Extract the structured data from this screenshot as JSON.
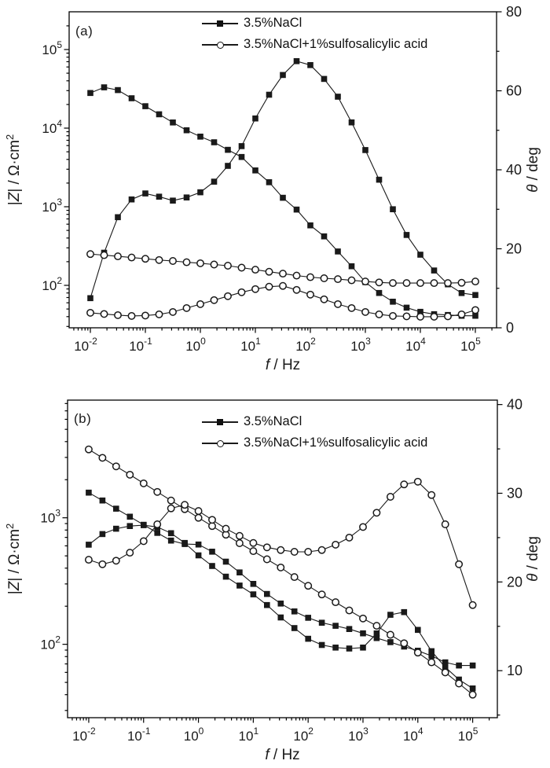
{
  "figure": {
    "background": "#ffffff",
    "axis_color": "#000000",
    "series_color": "#1a1a1a",
    "panel_labels": [
      "(a)",
      "(b)"
    ]
  },
  "legend": {
    "items": [
      {
        "label": "3.5%NaCl",
        "marker": "filled-square"
      },
      {
        "label": "3.5%NaCl+1%sulfosalicylic acid",
        "marker": "open-circle"
      }
    ]
  },
  "chart_data": [
    {
      "type": "line",
      "panel_label": "(a)",
      "x_label_parts": [
        {
          "text": "f",
          "italic": true
        },
        {
          "text": " / Hz"
        }
      ],
      "y_left_label_parts": [
        {
          "text": "|"
        },
        {
          "text": "Z",
          "italic": true
        },
        {
          "text": "| / Ω·cm"
        },
        {
          "text": "2",
          "sup": true
        }
      ],
      "y_right_label_parts": [
        {
          "text": "θ",
          "italic": true
        },
        {
          "text": " / deg"
        }
      ],
      "x_scale": "log",
      "y_left_scale": "log",
      "y_right_scale": "linear",
      "x_tick_exponents": [
        -2,
        -1,
        0,
        1,
        2,
        3,
        4,
        5
      ],
      "y_left_tick_exponents": [
        2,
        3,
        4,
        5
      ],
      "y_right_ticks": [
        0,
        20,
        40,
        60,
        80
      ],
      "x_range_log": [
        -2.386,
        5.386
      ],
      "y_left_range_log": [
        1.46,
        5.48
      ],
      "y_right_range": [
        0,
        80
      ],
      "y_right_minor_step": 10,
      "log_f": [
        -2,
        -1.75,
        -1.5,
        -1.25,
        -1,
        -0.75,
        -0.5,
        -0.25,
        0,
        0.25,
        0.5,
        0.75,
        1,
        1.25,
        1.5,
        1.75,
        2,
        2.25,
        2.5,
        2.75,
        3,
        3.25,
        3.5,
        3.75,
        4,
        4.25,
        4.5,
        4.75,
        5
      ],
      "series": [
        {
          "name": "3.5%NaCl",
          "quantity": "|Z| / Ω·cm2",
          "axis": "left",
          "marker": "filled-square",
          "values": [
            28000,
            33000,
            30500,
            24000,
            19000,
            15000,
            11800,
            9400,
            7800,
            6600,
            5300,
            4300,
            2900,
            2050,
            1300,
            920,
            580,
            420,
            270,
            175,
            110,
            80,
            62,
            52,
            46,
            43,
            42,
            41,
            41
          ]
        },
        {
          "name": "3.5%NaCl",
          "quantity": "θ / deg",
          "axis": "right",
          "marker": "filled-square",
          "values": [
            7.5,
            19,
            28,
            32.5,
            34,
            33.2,
            32.2,
            33,
            34.3,
            37,
            41,
            46,
            53,
            59,
            64,
            67.5,
            66.5,
            63,
            58.5,
            52,
            45,
            37.5,
            30,
            23.5,
            18.5,
            14.5,
            11,
            8.8,
            8.3
          ]
        },
        {
          "name": "3.5%NaCl+1%sulfosalicylic acid",
          "quantity": "|Z| / Ω·cm2",
          "axis": "left",
          "marker": "open-circle",
          "values": [
            250,
            242,
            234,
            226,
            218,
            210,
            204,
            197,
            191,
            184,
            178,
            168,
            158,
            149,
            141,
            133,
            127,
            123,
            120,
            116,
            112,
            109,
            107,
            107,
            107,
            107,
            107,
            108,
            112
          ]
        },
        {
          "name": "3.5%NaCl+1%sulfosalicylic acid",
          "quantity": "θ / deg",
          "axis": "right",
          "marker": "open-circle",
          "values": [
            3.8,
            3.5,
            3.2,
            3.0,
            3.1,
            3.4,
            4.0,
            5.0,
            6.0,
            7.0,
            8.0,
            9.0,
            9.8,
            10.4,
            10.6,
            9.6,
            8.4,
            7.2,
            6.0,
            5.0,
            4.0,
            3.4,
            3.0,
            2.9,
            2.8,
            2.8,
            2.9,
            3.4,
            4.5
          ]
        }
      ]
    },
    {
      "type": "line",
      "panel_label": "(b)",
      "x_label_parts": [
        {
          "text": "f",
          "italic": true
        },
        {
          "text": " / Hz"
        }
      ],
      "y_left_label_parts": [
        {
          "text": "|"
        },
        {
          "text": "Z",
          "italic": true
        },
        {
          "text": "| / Ω·cm"
        },
        {
          "text": "2",
          "sup": true
        }
      ],
      "y_right_label_parts": [
        {
          "text": "θ",
          "italic": true
        },
        {
          "text": " / deg"
        }
      ],
      "x_scale": "log",
      "y_left_scale": "log",
      "y_right_scale": "linear",
      "x_tick_exponents": [
        -2,
        -1,
        0,
        1,
        2,
        3,
        4,
        5
      ],
      "y_left_tick_exponents": [
        2,
        3
      ],
      "y_right_ticks": [
        10,
        20,
        30,
        40
      ],
      "x_range_log": [
        -2.386,
        5.45
      ],
      "y_left_range_log": [
        1.42,
        3.93
      ],
      "y_right_range": [
        4.7,
        40.5
      ],
      "y_right_minor_step": 5,
      "log_f": [
        -2,
        -1.75,
        -1.5,
        -1.25,
        -1,
        -0.75,
        -0.5,
        -0.25,
        0,
        0.25,
        0.5,
        0.75,
        1,
        1.25,
        1.5,
        1.75,
        2,
        2.25,
        2.5,
        2.75,
        3,
        3.25,
        3.5,
        3.75,
        4,
        4.25,
        4.5,
        4.75,
        5
      ],
      "series": [
        {
          "name": "3.5%NaCl",
          "quantity": "|Z| / Ω·cm2",
          "axis": "left",
          "marker": "filled-square",
          "values": [
            1580,
            1370,
            1180,
            1020,
            880,
            760,
            660,
            620,
            615,
            540,
            450,
            370,
            300,
            250,
            210,
            182,
            162,
            148,
            140,
            132,
            122,
            112,
            104,
            96,
            89,
            81,
            72,
            68,
            68
          ]
        },
        {
          "name": "3.5%NaCl",
          "quantity": "θ / deg",
          "axis": "right",
          "marker": "filled-square",
          "values": [
            24.2,
            25.4,
            26,
            26.3,
            26.4,
            26.2,
            25.5,
            24.4,
            23,
            21.8,
            20.6,
            19.6,
            18.6,
            17.4,
            16,
            14.8,
            13.6,
            12.9,
            12.6,
            12.5,
            12.6,
            14.2,
            16.3,
            16.6,
            14.6,
            12.2,
            10.4,
            9,
            8
          ]
        },
        {
          "name": "3.5%NaCl+1%sulfosalicylic acid",
          "quantity": "|Z| / Ω·cm2",
          "axis": "left",
          "marker": "open-circle",
          "values": [
            3470,
            2980,
            2550,
            2190,
            1870,
            1600,
            1370,
            1170,
            1000,
            860,
            735,
            630,
            545,
            470,
            405,
            340,
            290,
            248,
            215,
            185,
            160,
            140,
            119,
            102,
            86,
            72,
            60,
            49,
            40
          ]
        },
        {
          "name": "3.5%NaCl+1%sulfosalicylic acid",
          "quantity": "θ / deg",
          "axis": "right",
          "marker": "open-circle",
          "values": [
            22.5,
            22,
            22.4,
            23.3,
            24.6,
            26.5,
            28.3,
            28.7,
            28,
            27,
            26,
            25.2,
            24.4,
            23.9,
            23.6,
            23.4,
            23.4,
            23.6,
            24.2,
            25,
            26.2,
            27.8,
            29.6,
            31,
            31.3,
            29.8,
            26.5,
            22,
            17.4
          ]
        }
      ]
    }
  ]
}
